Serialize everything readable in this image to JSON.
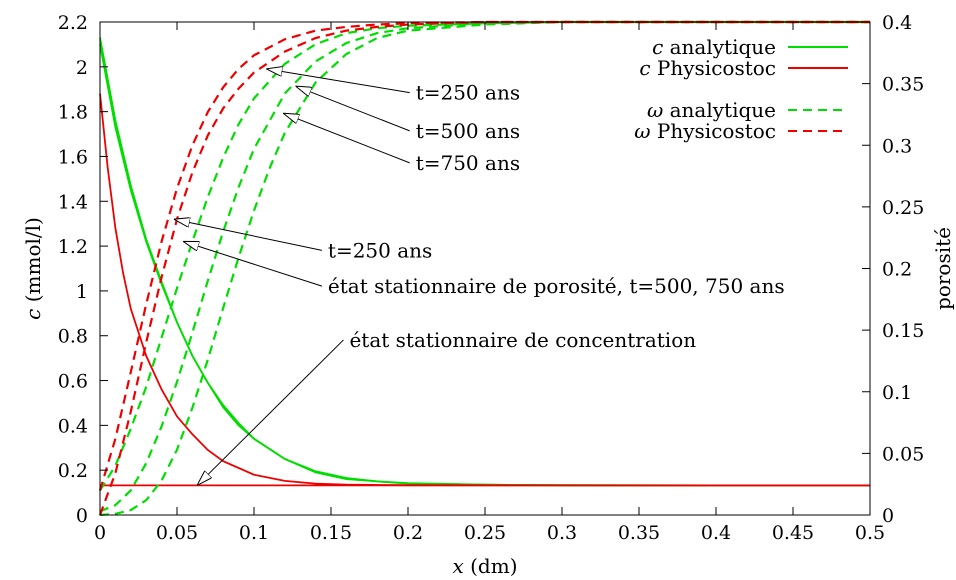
{
  "chart_data": {
    "type": "line",
    "xlabel_var": "x",
    "xlabel_unit": " (dm)",
    "ylabel_var": "c",
    "ylabel_unit": " (mmol/l)",
    "y2label": "porosité",
    "xlim": [
      0,
      0.5
    ],
    "ylim": [
      0,
      2.2
    ],
    "y2lim": [
      0,
      0.4
    ],
    "x_ticks": [
      0,
      0.05,
      0.1,
      0.15,
      0.2,
      0.25,
      0.3,
      0.35,
      0.4,
      0.45,
      0.5
    ],
    "x_tick_labels": [
      "0",
      "0.05",
      "0.1",
      "0.15",
      "0.2",
      "0.25",
      "0.3",
      "0.35",
      "0.4",
      "0.45",
      "0.5"
    ],
    "y_ticks": [
      0,
      0.2,
      0.4,
      0.6,
      0.8,
      1,
      1.2,
      1.4,
      1.6,
      1.8,
      2,
      2.2
    ],
    "y_tick_labels": [
      "0",
      "0.2",
      "0.4",
      "0.6",
      "0.8",
      "1",
      "1.2",
      "1.4",
      "1.6",
      "1.8",
      "2",
      "2.2"
    ],
    "y2_ticks": [
      0,
      0.05,
      0.1,
      0.15,
      0.2,
      0.25,
      0.3,
      0.35,
      0.4
    ],
    "y2_tick_labels": [
      "0",
      "0.05",
      "0.1",
      "0.15",
      "0.2",
      "0.25",
      "0.3",
      "0.35",
      "0.4"
    ],
    "grid": false,
    "legend_position": "top-right",
    "colors": {
      "analytique": "#00dd00",
      "physicostoc": "#ee0000"
    },
    "legend": [
      {
        "var": "c",
        "text": " analytique",
        "color": "#00dd00",
        "dashed": false
      },
      {
        "var": "c",
        "text": " Physicostoc",
        "color": "#ee0000",
        "dashed": false
      },
      {
        "var": "ω",
        "text": " analytique",
        "color": "#00dd00",
        "dashed": true
      },
      {
        "var": "ω",
        "text": " Physicostoc",
        "color": "#ee0000",
        "dashed": true
      }
    ],
    "series": [
      {
        "group": "c analytique",
        "time": "t=250 ans",
        "axis": "left",
        "color": "#00dd00",
        "dashed": false,
        "x": [
          0,
          0.01,
          0.02,
          0.03,
          0.04,
          0.05,
          0.06,
          0.07,
          0.08,
          0.09,
          0.1,
          0.12,
          0.14,
          0.16,
          0.18,
          0.2,
          0.25,
          0.3,
          0.4,
          0.5
        ],
        "y": [
          2.13,
          1.76,
          1.47,
          1.23,
          1.04,
          0.86,
          0.71,
          0.59,
          0.48,
          0.4,
          0.34,
          0.25,
          0.19,
          0.16,
          0.15,
          0.14,
          0.135,
          0.133,
          0.132,
          0.132
        ]
      },
      {
        "group": "c analytique",
        "time": "t=500 ans",
        "axis": "left",
        "color": "#00dd00",
        "dashed": false,
        "x": [
          0,
          0.01,
          0.02,
          0.03,
          0.04,
          0.05,
          0.06,
          0.07,
          0.08,
          0.09,
          0.1,
          0.12,
          0.14,
          0.16,
          0.18,
          0.2,
          0.25,
          0.3,
          0.4,
          0.5
        ],
        "y": [
          2.1,
          1.73,
          1.45,
          1.22,
          1.03,
          0.86,
          0.71,
          0.59,
          0.49,
          0.41,
          0.34,
          0.25,
          0.195,
          0.165,
          0.15,
          0.142,
          0.135,
          0.133,
          0.132,
          0.132
        ]
      },
      {
        "group": "c Physicostoc",
        "time": "t=250 ans",
        "axis": "left",
        "color": "#ee0000",
        "dashed": false,
        "x": [
          0,
          0.005,
          0.01,
          0.015,
          0.02,
          0.03,
          0.04,
          0.05,
          0.06,
          0.07,
          0.08,
          0.1,
          0.12,
          0.14,
          0.16,
          0.2,
          0.3,
          0.5
        ],
        "y": [
          1.88,
          1.55,
          1.28,
          1.08,
          0.92,
          0.71,
          0.56,
          0.44,
          0.36,
          0.29,
          0.24,
          0.18,
          0.152,
          0.14,
          0.135,
          0.133,
          0.132,
          0.132
        ]
      },
      {
        "group": "c Physicostoc",
        "time": "état stationnaire",
        "axis": "left",
        "color": "#ee0000",
        "dashed": false,
        "x": [
          0,
          0.5
        ],
        "y": [
          0.132,
          0.132
        ]
      },
      {
        "group": "ω analytique",
        "time": "t=250 ans",
        "axis": "right",
        "color": "#00dd00",
        "dashed": true,
        "x": [
          0,
          0.01,
          0.02,
          0.03,
          0.04,
          0.05,
          0.06,
          0.07,
          0.08,
          0.09,
          0.1,
          0.12,
          0.14,
          0.16,
          0.18,
          0.2,
          0.25,
          0.3,
          0.4,
          0.5
        ],
        "y": [
          0.02,
          0.04,
          0.07,
          0.104,
          0.144,
          0.184,
          0.222,
          0.258,
          0.29,
          0.317,
          0.338,
          0.366,
          0.382,
          0.391,
          0.395,
          0.397,
          0.399,
          0.4,
          0.4,
          0.4
        ]
      },
      {
        "group": "ω analytique",
        "time": "t=500 ans",
        "axis": "right",
        "color": "#00dd00",
        "dashed": true,
        "x": [
          0,
          0.01,
          0.02,
          0.03,
          0.04,
          0.05,
          0.06,
          0.07,
          0.08,
          0.09,
          0.1,
          0.12,
          0.14,
          0.16,
          0.18,
          0.2,
          0.25,
          0.3,
          0.4,
          0.5
        ],
        "y": [
          0.003,
          0.008,
          0.02,
          0.042,
          0.072,
          0.108,
          0.148,
          0.19,
          0.23,
          0.266,
          0.297,
          0.342,
          0.368,
          0.383,
          0.391,
          0.395,
          0.399,
          0.4,
          0.4,
          0.4
        ]
      },
      {
        "group": "ω analytique",
        "time": "t=750 ans",
        "axis": "right",
        "color": "#00dd00",
        "dashed": true,
        "x": [
          0,
          0.01,
          0.02,
          0.03,
          0.04,
          0.05,
          0.06,
          0.07,
          0.08,
          0.09,
          0.1,
          0.11,
          0.12,
          0.14,
          0.16,
          0.18,
          0.2,
          0.25,
          0.3,
          0.4,
          0.5
        ],
        "y": [
          0,
          0.001,
          0.004,
          0.012,
          0.028,
          0.053,
          0.087,
          0.126,
          0.168,
          0.209,
          0.247,
          0.281,
          0.31,
          0.351,
          0.374,
          0.387,
          0.393,
          0.398,
          0.4,
          0.4,
          0.4
        ]
      },
      {
        "group": "ω Physicostoc",
        "time": "t=250 ans",
        "axis": "right",
        "color": "#ee0000",
        "dashed": true,
        "x": [
          0,
          0.01,
          0.02,
          0.03,
          0.04,
          0.05,
          0.06,
          0.07,
          0.08,
          0.09,
          0.1,
          0.12,
          0.14,
          0.16,
          0.18,
          0.2,
          0.25,
          0.3,
          0.4,
          0.5
        ],
        "y": [
          0.02,
          0.062,
          0.116,
          0.171,
          0.222,
          0.265,
          0.3,
          0.327,
          0.347,
          0.362,
          0.373,
          0.386,
          0.393,
          0.396,
          0.398,
          0.399,
          0.4,
          0.4,
          0.4,
          0.4
        ]
      },
      {
        "group": "ω Physicostoc",
        "time": "état stationnaire",
        "axis": "right",
        "color": "#ee0000",
        "dashed": true,
        "x": [
          0,
          0.01,
          0.02,
          0.03,
          0.04,
          0.05,
          0.06,
          0.07,
          0.08,
          0.09,
          0.1,
          0.12,
          0.14,
          0.16,
          0.18,
          0.2,
          0.25,
          0.3,
          0.4,
          0.5
        ],
        "y": [
          0,
          0.034,
          0.084,
          0.14,
          0.193,
          0.24,
          0.278,
          0.308,
          0.33,
          0.346,
          0.359,
          0.376,
          0.387,
          0.393,
          0.396,
          0.398,
          0.4,
          0.4,
          0.4,
          0.4
        ]
      }
    ],
    "annotations": [
      {
        "text": "t=250 ans",
        "text_at": [
          0.205,
          0.337
        ],
        "points_to": [
          0.108,
          0.362
        ]
      },
      {
        "text": "t=500 ans",
        "text_at": [
          0.205,
          0.306
        ],
        "points_to": [
          0.127,
          0.348
        ]
      },
      {
        "text": "t=750 ans",
        "text_at": [
          0.205,
          0.28
        ],
        "points_to": [
          0.119,
          0.326
        ]
      },
      {
        "text": "t=250 ans",
        "text_at": [
          0.148,
          0.209
        ],
        "points_to": [
          0.048,
          0.24
        ]
      },
      {
        "text": "état stationnaire de porosité, t=500, 750 ans",
        "text_at": [
          0.148,
          0.18
        ],
        "points_to": [
          0.054,
          0.222
        ]
      },
      {
        "text": "état stationnaire de concentration",
        "text_at": [
          0.162,
          0.75
        ],
        "points_to": [
          0.063,
          0.132
        ]
      }
    ]
  }
}
